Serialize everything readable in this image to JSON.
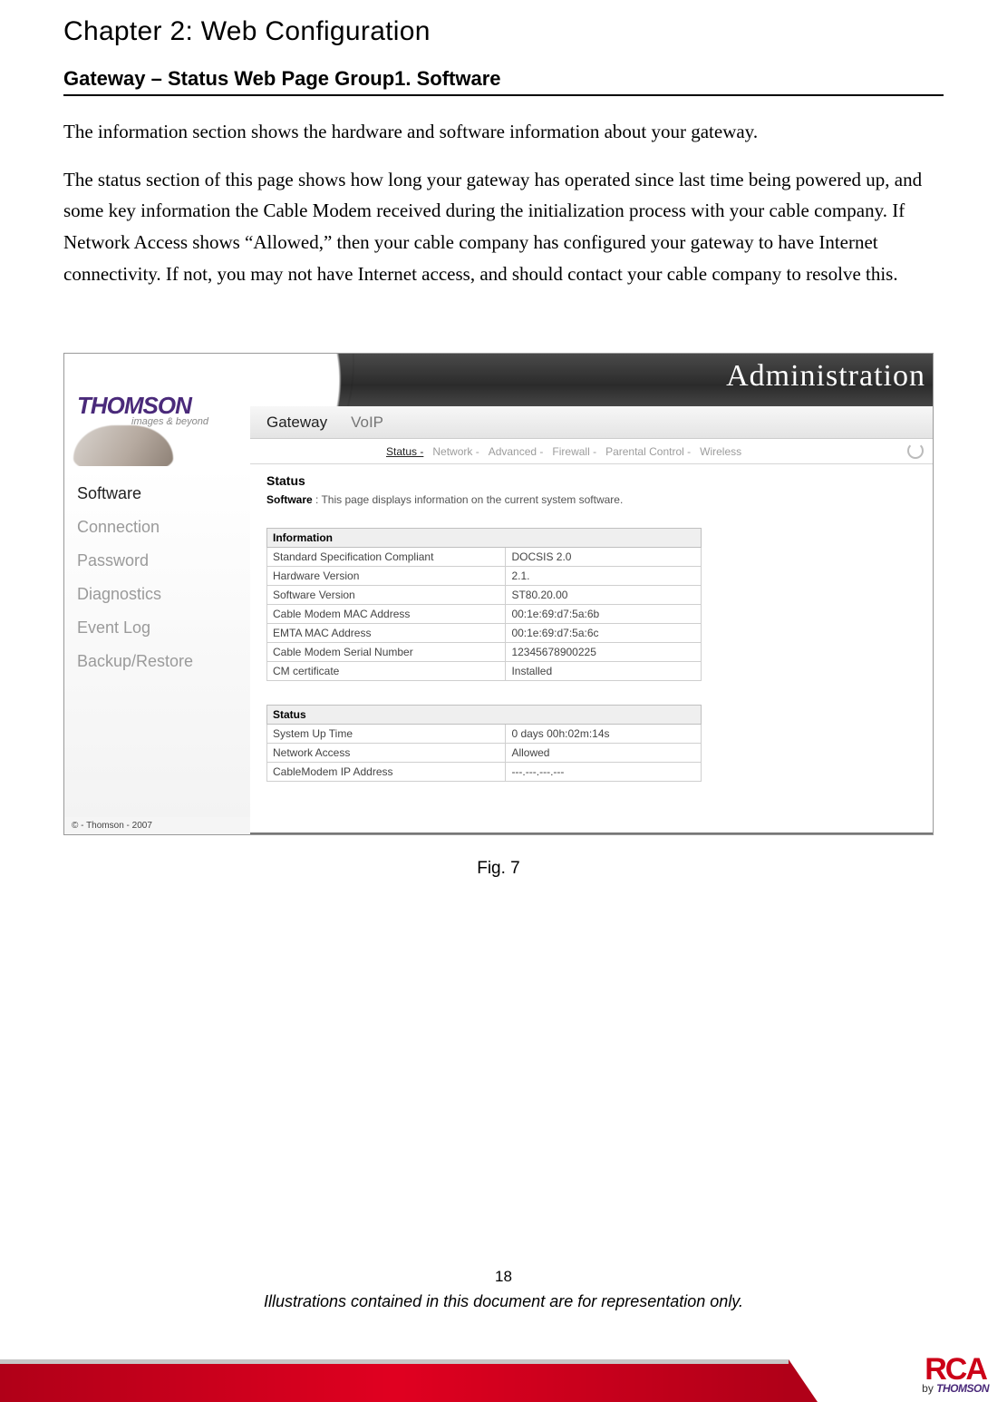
{
  "chapter_title": "Chapter 2: Web Configuration",
  "section_title": "Gateway – Status Web Page Group1. Software",
  "para1": "The information section shows the hardware and software information about your gateway.",
  "para2": "The status section of this page shows how long your gateway has operated since last time being powered up, and some key information the Cable Modem received during the initialization process with your cable company. If Network Access shows “Allowed,” then your cable company has configured your gateway to have Internet connectivity. If not, you may not have Internet access, and should contact your cable company to resolve this.",
  "panel": {
    "banner_title": "Administration",
    "brand_name": "THOMSON",
    "brand_sub": "images & beyond",
    "copyright": "© - Thomson - 2007",
    "sidenav": [
      {
        "label": "Software",
        "active": true
      },
      {
        "label": "Connection",
        "active": false
      },
      {
        "label": "Password",
        "active": false
      },
      {
        "label": "Diagnostics",
        "active": false
      },
      {
        "label": "Event Log",
        "active": false
      },
      {
        "label": "Backup/Restore",
        "active": false
      }
    ],
    "tabs": [
      {
        "label": "Gateway",
        "active": true
      },
      {
        "label": "VoIP",
        "active": false
      }
    ],
    "subtabs": [
      {
        "label": "Status -",
        "active": true
      },
      {
        "label": "Network -",
        "active": false
      },
      {
        "label": "Advanced -",
        "active": false
      },
      {
        "label": "Firewall -",
        "active": false
      },
      {
        "label": "Parental Control -",
        "active": false
      },
      {
        "label": "Wireless",
        "active": false
      }
    ],
    "status_header": "Status",
    "desc_label": "Software",
    "desc_text": " :  This page displays information on the current system software.",
    "info_table": {
      "header": "Information",
      "rows": [
        [
          "Standard Specification Compliant",
          "DOCSIS 2.0"
        ],
        [
          "Hardware Version",
          "2.1."
        ],
        [
          "Software Version",
          "ST80.20.00"
        ],
        [
          "Cable Modem MAC Address",
          "00:1e:69:d7:5a:6b"
        ],
        [
          "EMTA MAC Address",
          "00:1e:69:d7:5a:6c"
        ],
        [
          "Cable Modem Serial Number",
          "12345678900225"
        ],
        [
          "CM certificate",
          "Installed"
        ]
      ]
    },
    "status_table": {
      "header": "Status",
      "rows": [
        [
          "System Up Time",
          "0 days 00h:02m:14s"
        ],
        [
          "Network Access",
          "Allowed"
        ],
        [
          "CableModem IP Address",
          "---.---.---.---"
        ]
      ]
    }
  },
  "fig_caption": "Fig. 7",
  "page_number": "18",
  "disclaimer": "Illustrations contained in this document are for representation only.",
  "footer_logo_main": "RCA",
  "footer_logo_sub_prefix": "by ",
  "footer_logo_sub_brand": "THOMSON",
  "colors": {
    "text": "#000000",
    "muted": "#9a9a9a",
    "banner_bg_top": "#4a4a4a",
    "banner_bg_bottom": "#2b2b2b",
    "brand_purple": "#4a2a7a",
    "brand_red": "#cc0017",
    "footer_red": "#b00018",
    "table_border": "#cfcfcf",
    "table_header_bg": "#efefef"
  }
}
